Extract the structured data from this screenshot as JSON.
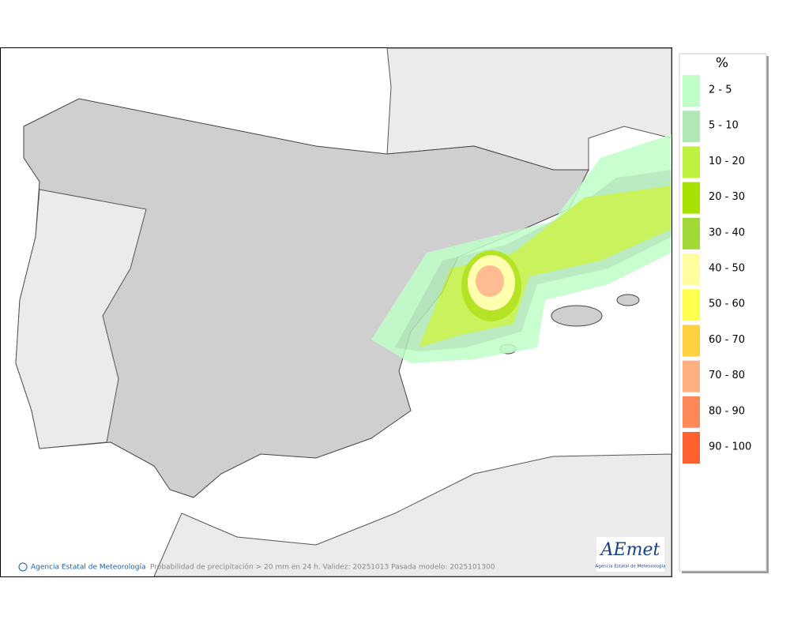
{
  "map": {
    "caption": "Probabilidad de precipitación > 20 mm en 24 h. Validez: 20251013 Pasada modelo: 2025101300",
    "credit": "Agencia Estatal de Meteorología",
    "logo": {
      "name": "AEmet",
      "subtitle": "Agencia Estatal de Meteorología"
    }
  },
  "legend": {
    "title": "%",
    "items": [
      {
        "label": "2 - 5",
        "color": "#c0ffc8"
      },
      {
        "label": "5 - 10",
        "color": "#b0e8b8"
      },
      {
        "label": "10 - 20",
        "color": "#c0f040"
      },
      {
        "label": "20 - 30",
        "color": "#a8e000"
      },
      {
        "label": "30 - 40",
        "color": "#a0d838"
      },
      {
        "label": "40 - 50",
        "color": "#ffffa0"
      },
      {
        "label": "50 - 60",
        "color": "#ffff50"
      },
      {
        "label": "60 - 70",
        "color": "#ffd040"
      },
      {
        "label": "70 - 80",
        "color": "#ffb080"
      },
      {
        "label": "80 - 90",
        "color": "#ff8858"
      },
      {
        "label": "90 - 100",
        "color": "#ff6030"
      }
    ]
  }
}
